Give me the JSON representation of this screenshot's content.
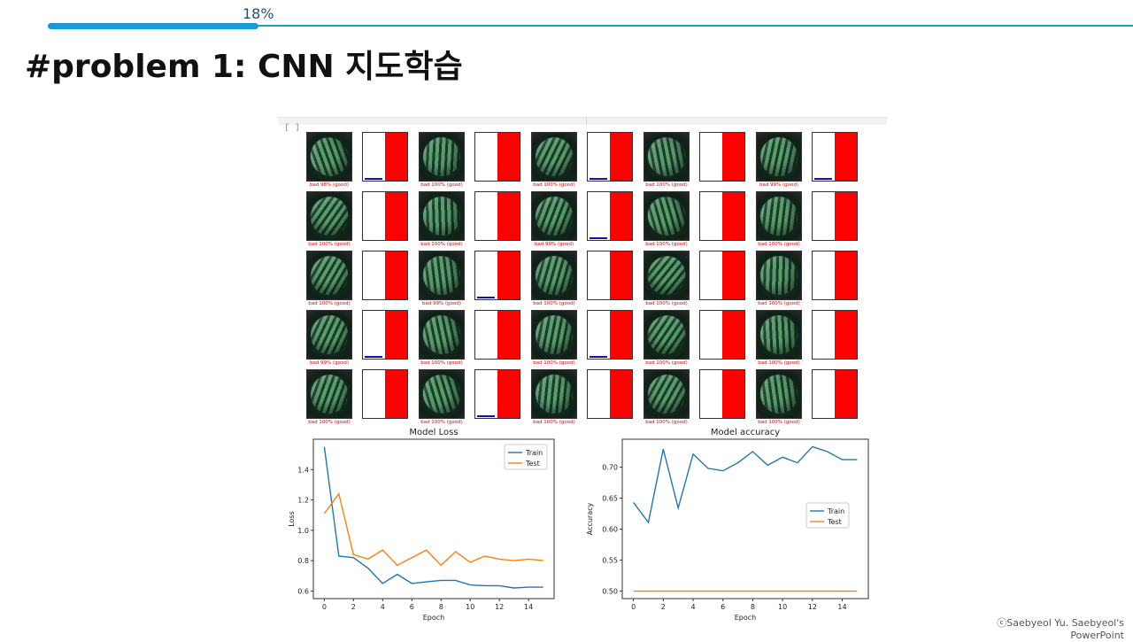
{
  "progress": {
    "label": "18%",
    "fraction": 0.18
  },
  "page_title": "#problem 1: CNN 지도학습",
  "notebook": {
    "cell_prompt": "[ ]",
    "predictions": [
      [
        "bad 98% (good)",
        "bad 100% (good)",
        "bad 100% (good)",
        "bad 100% (good)",
        "bad 99% (good)"
      ],
      [
        "bad 100% (good)",
        "bad 100% (good)",
        "bad 99% (good)",
        "bad 100% (good)",
        "bad 100% (good)"
      ],
      [
        "bad 100% (good)",
        "bad 99% (good)",
        "bad 100% (good)",
        "bad 100% (good)",
        "bad 100% (good)"
      ],
      [
        "bad 99% (good)",
        "bad 100% (good)",
        "bad 100% (good)",
        "bad 100% (good)",
        "bad 100% (good)"
      ],
      [
        "bad 100% (good)",
        "bad 100% (good)",
        "bad 100% (good)",
        "bad 100% (good)",
        "bad 100% (good)"
      ]
    ],
    "blue_bar_fraction": [
      [
        0.04,
        0.0,
        0.04,
        0.0,
        0.04
      ],
      [
        0.0,
        0.0,
        0.04,
        0.0,
        0.0
      ],
      [
        0.0,
        0.04,
        0.0,
        0.0,
        0.0
      ],
      [
        0.04,
        0.0,
        0.04,
        0.0,
        0.0
      ],
      [
        0.0,
        0.04,
        0.0,
        0.0,
        0.0
      ]
    ]
  },
  "chart_data": [
    {
      "type": "line",
      "title": "Model Loss",
      "xlabel": "Epoch",
      "ylabel": "Loss",
      "x": [
        0,
        1,
        2,
        3,
        4,
        5,
        6,
        7,
        8,
        9,
        10,
        11,
        12,
        13,
        14,
        15
      ],
      "series": [
        {
          "name": "Train",
          "color": "#1f77b4",
          "values": [
            1.55,
            0.83,
            0.82,
            0.75,
            0.65,
            0.71,
            0.65,
            0.66,
            0.67,
            0.67,
            0.64,
            0.635,
            0.635,
            0.62,
            0.625,
            0.625
          ]
        },
        {
          "name": "Test",
          "color": "#ff7f0e",
          "values": [
            1.11,
            1.24,
            0.84,
            0.81,
            0.87,
            0.77,
            0.82,
            0.87,
            0.77,
            0.86,
            0.79,
            0.83,
            0.81,
            0.8,
            0.81,
            0.8
          ]
        }
      ],
      "xticks": [
        "0",
        "2",
        "4",
        "6",
        "8",
        "10",
        "12",
        "14"
      ],
      "yticks": [
        "0.6",
        "0.8",
        "1.0",
        "1.2",
        "1.4"
      ],
      "xlim": [
        -0.75,
        15.75
      ],
      "ylim": [
        0.55,
        1.6
      ],
      "legend": "top-right"
    },
    {
      "type": "line",
      "title": "Model accuracy",
      "xlabel": "Epoch",
      "ylabel": "Accuracy",
      "x": [
        0,
        1,
        2,
        3,
        4,
        5,
        6,
        7,
        8,
        9,
        10,
        11,
        12,
        13,
        14,
        15
      ],
      "series": [
        {
          "name": "Train",
          "color": "#1f77b4",
          "values": [
            0.643,
            0.611,
            0.729,
            0.634,
            0.721,
            0.698,
            0.694,
            0.707,
            0.725,
            0.703,
            0.716,
            0.707,
            0.733,
            0.725,
            0.712,
            0.712
          ]
        },
        {
          "name": "Test",
          "color": "#ff7f0e",
          "values": [
            0.5,
            0.5,
            0.5,
            0.5,
            0.5,
            0.5,
            0.5,
            0.5,
            0.5,
            0.5,
            0.5,
            0.5,
            0.5,
            0.5,
            0.5,
            0.5
          ]
        }
      ],
      "xticks": [
        "0",
        "2",
        "4",
        "6",
        "8",
        "10",
        "12",
        "14"
      ],
      "yticks": [
        "0.50",
        "0.55",
        "0.60",
        "0.65",
        "0.70"
      ],
      "xlim": [
        -0.75,
        15.75
      ],
      "ylim": [
        0.488,
        0.745
      ],
      "legend": "center-right"
    }
  ],
  "credit": {
    "line1": "ⓒSaebyeol Yu. Saebyeol's",
    "line2": "PowerPoint"
  }
}
